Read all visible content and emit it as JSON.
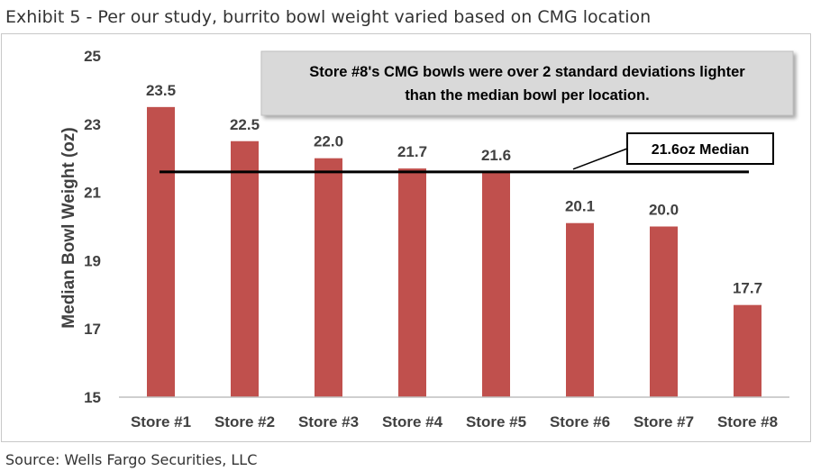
{
  "header": {
    "title": "Exhibit 5 - Per our study, burrito bowl weight varied based on CMG location"
  },
  "footer": {
    "source": "Source: Wells Fargo Securities, LLC"
  },
  "chart_data": {
    "type": "bar",
    "title": "Exhibit 5 - Per our study, burrito bowl weight varied based on CMG location",
    "xlabel": "",
    "ylabel": "Median Bowl Weight (oz)",
    "ylim": [
      15,
      25
    ],
    "yticks": [
      15,
      17,
      19,
      21,
      23,
      25
    ],
    "categories": [
      "Store #1",
      "Store #2",
      "Store #3",
      "Store #4",
      "Store #5",
      "Store #6",
      "Store #7",
      "Store #8"
    ],
    "values": [
      23.5,
      22.5,
      22.0,
      21.7,
      21.6,
      20.1,
      20.0,
      17.7
    ],
    "data_labels": [
      "23.5",
      "22.5",
      "22.0",
      "21.7",
      "21.6",
      "20.1",
      "20.0",
      "17.7"
    ],
    "grid": false,
    "legend": "none",
    "median_line": {
      "value": 21.6,
      "label": "21.6oz Median"
    },
    "annotation": {
      "line1": "Store #8's CMG bowls were over 2 standard deviations lighter",
      "line2": "than the median bowl per location."
    },
    "colors": {
      "bar": "#c0504d",
      "median_line": "#000000",
      "annotation_fill": "#d9d9d9",
      "axis": "#bfbfbf",
      "text": "#404040"
    }
  }
}
